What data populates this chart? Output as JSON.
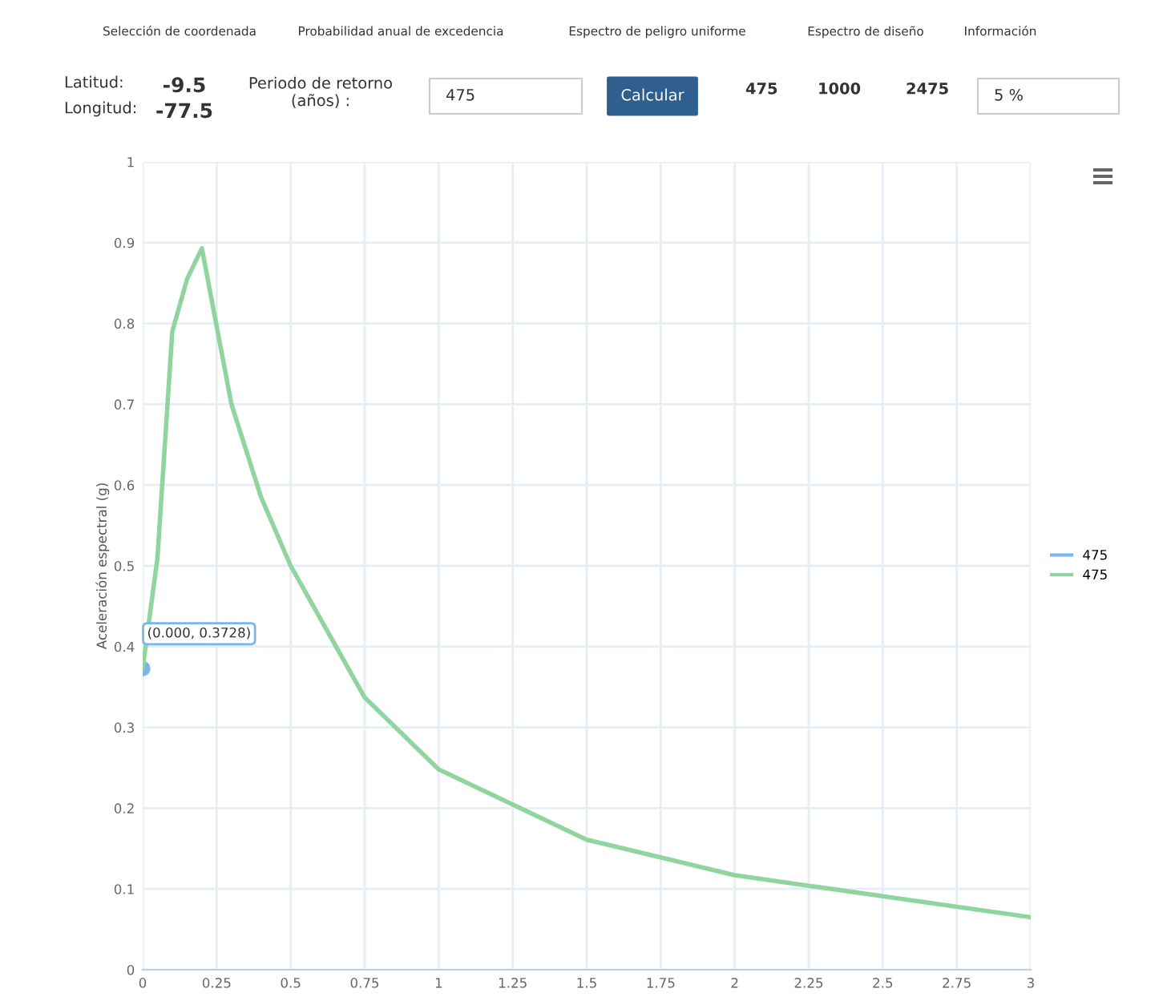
{
  "chart_data": {
    "type": "line",
    "ylabel": "Aceleración espectral (g)",
    "xlim": [
      0,
      3
    ],
    "ylim": [
      0,
      1
    ],
    "xticks": [
      0,
      0.25,
      0.5,
      0.75,
      1,
      1.25,
      1.5,
      1.75,
      2,
      2.25,
      2.5,
      2.75,
      3
    ],
    "yticks": [
      0,
      0.1,
      0.2,
      0.3,
      0.4,
      0.5,
      0.6,
      0.7,
      0.8,
      0.9,
      1
    ],
    "grid": true,
    "legend": "right",
    "series": [
      {
        "name": "475",
        "color": "#7cb5ec",
        "x": [
          0
        ],
        "values": [
          0.3728
        ],
        "marker": "circle"
      },
      {
        "name": "475",
        "color": "#90d5a0",
        "x": [
          0,
          0.05,
          0.1,
          0.15,
          0.2,
          0.3,
          0.4,
          0.5,
          0.75,
          1,
          1.5,
          2,
          3
        ],
        "values": [
          0.3728,
          0.51,
          0.79,
          0.855,
          0.893,
          0.7,
          0.585,
          0.5,
          0.337,
          0.248,
          0.161,
          0.117,
          0.065
        ],
        "marker": "none"
      }
    ],
    "annotations": [
      {
        "text": "(0.000, 0.3728)",
        "x": 0,
        "y": 0.3728
      },
      "Selección de coordenada",
      "Probabilidad anual de excedencia",
      "Espectro de peligro uniforme",
      "Espectro de diseño",
      "Información",
      "Latitud:",
      "Longitud:",
      "-9.5",
      "-77.5",
      "Periodo de retorno\n(años) :",
      "475",
      "Calcular",
      "475",
      "1000",
      "2475",
      "5 %"
    ]
  }
}
